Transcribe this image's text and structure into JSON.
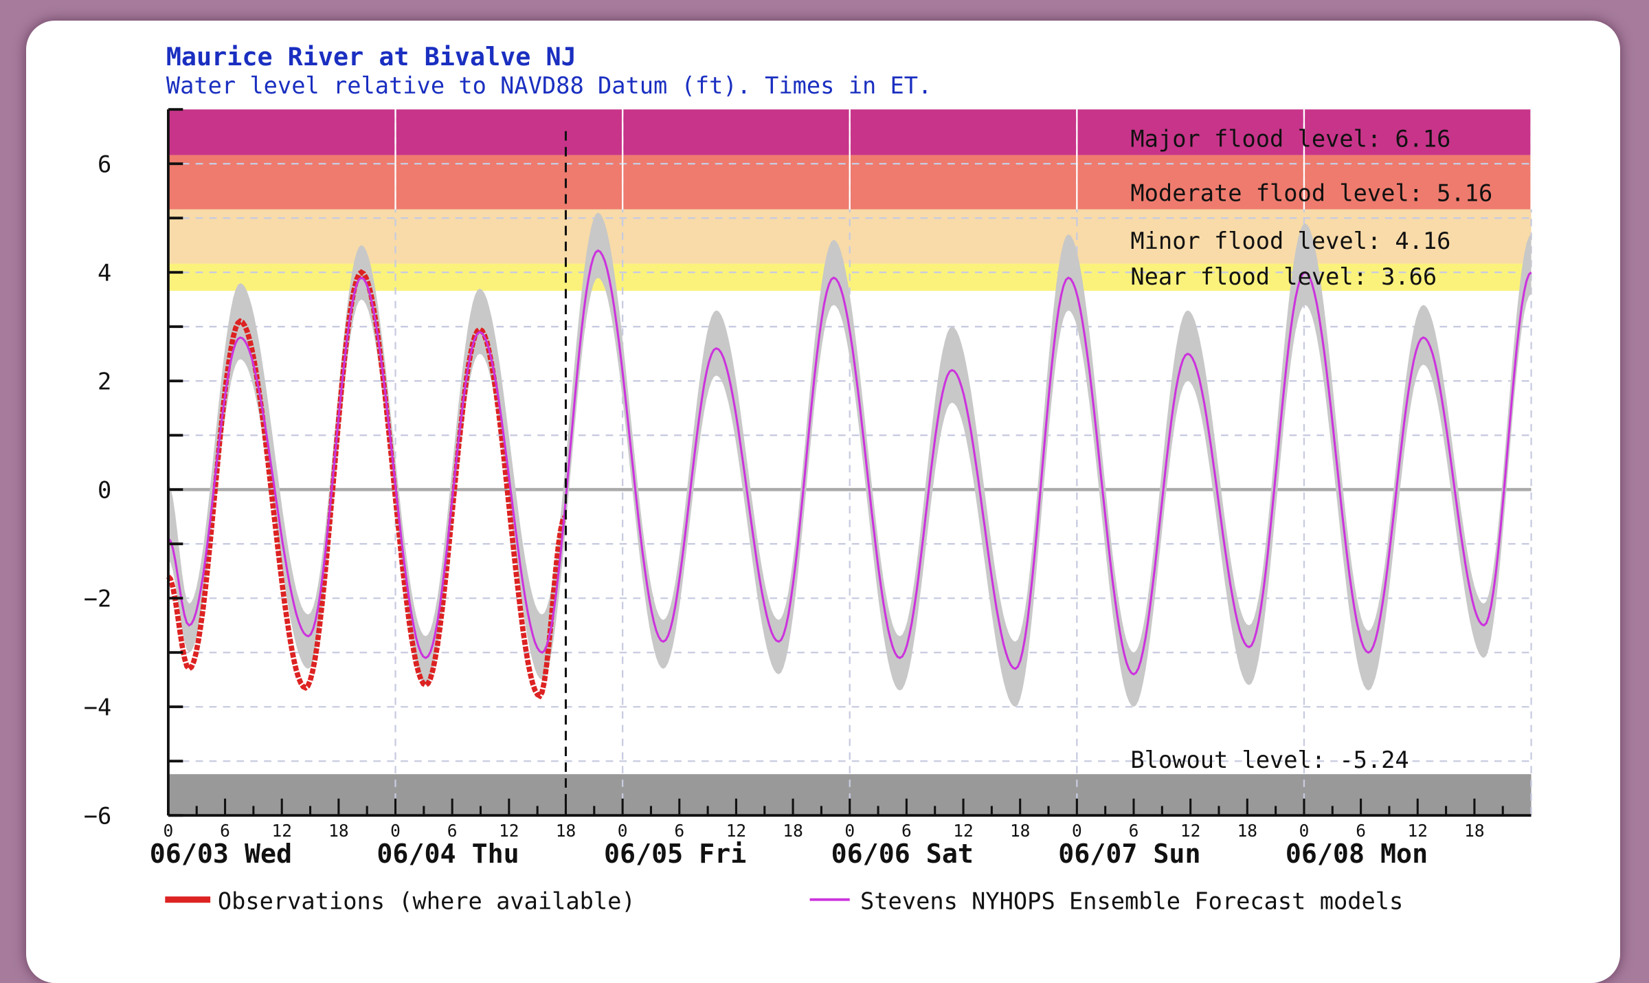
{
  "header": {
    "title": "Maurice River at Bivalve NJ",
    "subtitle": "Water level relative to NAVD88 Datum (ft). Times in ET."
  },
  "colors": {
    "title": "#1a2fc0",
    "observations": "#dd2222",
    "forecast": "#cc33dd",
    "ensemble": "#c8c8c8",
    "major": "#c8348a",
    "moderate": "#ee7b6e",
    "minor": "#f8dba8",
    "near": "#fbf27c",
    "blowout": "#999999"
  },
  "chart_data": {
    "type": "line",
    "title": "Maurice River at Bivalve NJ",
    "subtitle": "Water level relative to NAVD88 Datum (ft). Times in ET.",
    "ylim": [
      -6,
      7
    ],
    "yticks": [
      -6,
      -4,
      -2,
      0,
      2,
      4,
      6
    ],
    "xlim": [
      "06/03 00:00",
      "06/09 00:00"
    ],
    "hour_ticks": [
      "0",
      "6",
      "12",
      "18"
    ],
    "day_labels": [
      "06/03 Wed",
      "06/04 Thu",
      "06/05 Fri",
      "06/06 Sat",
      "06/07 Sun",
      "06/08 Mon"
    ],
    "grid": true,
    "now_marker": "06/04 18:00",
    "thresholds": [
      {
        "name": "major",
        "label": "Major flood level: 6.16",
        "value": 6.16
      },
      {
        "name": "moderate",
        "label": "Moderate flood level: 5.16",
        "value": 5.16
      },
      {
        "name": "minor",
        "label": "Minor flood level: 4.16",
        "value": 4.16
      },
      {
        "name": "near",
        "label": "Near flood level: 3.66",
        "value": 3.66
      },
      {
        "name": "blowout",
        "label": "Blowout level: -5.24",
        "value": -5.24
      }
    ],
    "legend": {
      "position": "bottom",
      "observations": "Observations (where available)",
      "forecast": "Stevens NYHOPS Ensemble Forecast models"
    },
    "series": [
      {
        "name": "Observations (where available)",
        "points": [
          {
            "t": "06/03 00:00",
            "v": -1.6
          },
          {
            "t": "06/03 02:12",
            "v": -3.3
          },
          {
            "t": "06/03 07:36",
            "v": 3.1
          },
          {
            "t": "06/03 14:30",
            "v": -3.65
          },
          {
            "t": "06/03 20:24",
            "v": 4.0
          },
          {
            "t": "06/04 03:12",
            "v": -3.6
          },
          {
            "t": "06/04 08:54",
            "v": 2.95
          },
          {
            "t": "06/04 15:15",
            "v": -3.8
          },
          {
            "t": "06/04 17:55",
            "v": -0.5
          }
        ]
      },
      {
        "name": "Stevens NYHOPS Ensemble Forecast models",
        "points": [
          {
            "t": "06/03 00:00",
            "v": -0.9,
            "min": -1.3,
            "max": 0.1
          },
          {
            "t": "06/03 02:12",
            "v": -2.5,
            "min": -3.0,
            "max": -2.1
          },
          {
            "t": "06/03 07:36",
            "v": 2.8,
            "min": 2.4,
            "max": 3.8
          },
          {
            "t": "06/03 14:48",
            "v": -2.7,
            "min": -3.3,
            "max": -2.3
          },
          {
            "t": "06/03 20:24",
            "v": 3.9,
            "min": 3.5,
            "max": 4.5
          },
          {
            "t": "06/04 03:12",
            "v": -3.1,
            "min": -3.6,
            "max": -2.7
          },
          {
            "t": "06/04 08:54",
            "v": 2.9,
            "min": 2.5,
            "max": 3.7
          },
          {
            "t": "06/04 15:30",
            "v": -3.0,
            "min": -3.5,
            "max": -2.3
          },
          {
            "t": "06/04 21:24",
            "v": 4.4,
            "min": 3.9,
            "max": 5.1
          },
          {
            "t": "06/05 04:18",
            "v": -2.8,
            "min": -3.3,
            "max": -2.4
          },
          {
            "t": "06/05 09:54",
            "v": 2.6,
            "min": 2.1,
            "max": 3.3
          },
          {
            "t": "06/05 16:30",
            "v": -2.8,
            "min": -3.4,
            "max": -2.4
          },
          {
            "t": "06/05 22:18",
            "v": 3.9,
            "min": 3.4,
            "max": 4.6
          },
          {
            "t": "06/06 05:18",
            "v": -3.1,
            "min": -3.7,
            "max": -2.7
          },
          {
            "t": "06/06 10:48",
            "v": 2.2,
            "min": 1.6,
            "max": 3.0
          },
          {
            "t": "06/06 17:30",
            "v": -3.3,
            "min": -4.0,
            "max": -2.8
          },
          {
            "t": "06/06 23:06",
            "v": 3.9,
            "min": 3.3,
            "max": 4.7
          },
          {
            "t": "06/07 06:00",
            "v": -3.4,
            "min": -4.0,
            "max": -3.0
          },
          {
            "t": "06/07 11:42",
            "v": 2.5,
            "min": 2.0,
            "max": 3.3
          },
          {
            "t": "06/07 18:12",
            "v": -2.9,
            "min": -3.6,
            "max": -2.5
          },
          {
            "t": "06/08 00:06",
            "v": 4.0,
            "min": 3.4,
            "max": 4.9
          },
          {
            "t": "06/08 06:48",
            "v": -3.0,
            "min": -3.7,
            "max": -2.6
          },
          {
            "t": "06/08 12:36",
            "v": 2.8,
            "min": 2.3,
            "max": 3.4
          },
          {
            "t": "06/08 19:00",
            "v": -2.5,
            "min": -3.1,
            "max": -2.1
          },
          {
            "t": "06/09 00:00",
            "v": 4.0,
            "min": 3.6,
            "max": 4.7
          }
        ]
      }
    ]
  }
}
